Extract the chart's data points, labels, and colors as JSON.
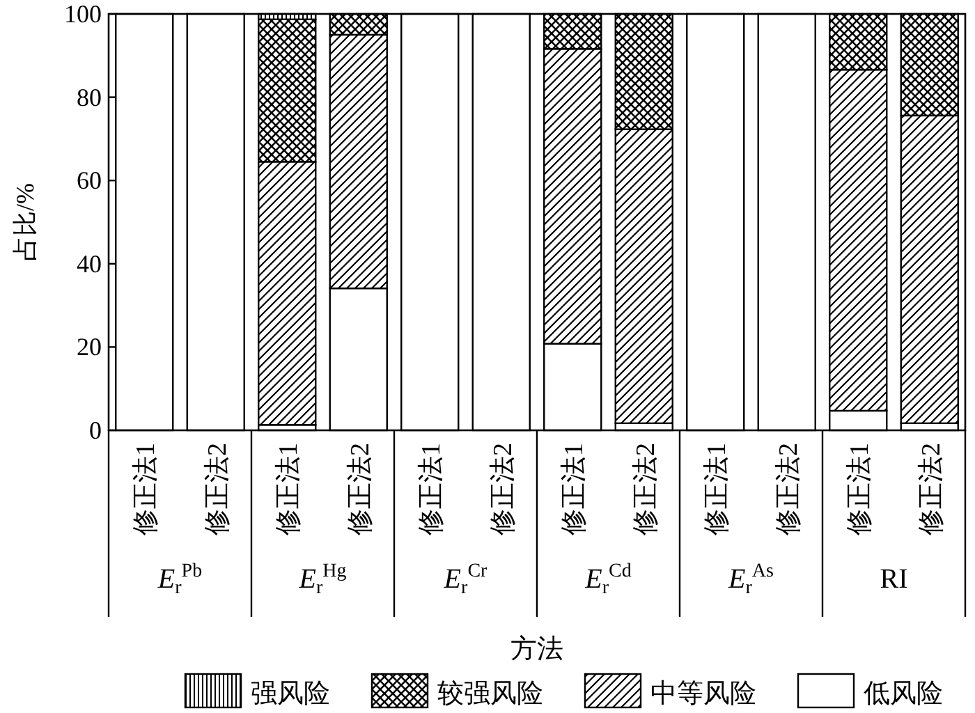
{
  "chart_data": {
    "type": "bar",
    "stacked": true,
    "xlabel": "方法",
    "ylabel": "占比/%",
    "categories": [
      "修正法1",
      "修正法2",
      "修正法1",
      "修正法2",
      "修正法1",
      "修正法2",
      "修正法1",
      "修正法2",
      "修正法1",
      "修正法2",
      "修正法1",
      "修正法2"
    ],
    "annotations": [
      "*E*$_{r}$$^{Pb}$",
      "*E*$_{r}$$^{Hg}$",
      "*E*$_{r}$$^{Cr}$",
      "*E*$_{r}$$^{Cd}$",
      "*E*$_{r}$$^{As}$",
      "RI"
    ],
    "series": [
      {
        "name": "低风险",
        "color": "#ffffff",
        "values": [
          100,
          100,
          1.3,
          34.1,
          100,
          100,
          20.8,
          1.7,
          100,
          100,
          4.7,
          1.7
        ]
      },
      {
        "name": "中等风险",
        "color": "#000000",
        "values": [
          0,
          0,
          63.2,
          60.9,
          0,
          0,
          70.8,
          70.6,
          0,
          0,
          81.9,
          73.9
        ]
      },
      {
        "name": "较强风险",
        "color": "#000000",
        "values": [
          0,
          0,
          34.2,
          5.0,
          0,
          0,
          8.4,
          27.7,
          0,
          0,
          13.4,
          24.4
        ]
      },
      {
        "name": "强风险",
        "color": "#000000",
        "values": [
          0,
          0,
          1.3,
          0,
          0,
          0,
          0,
          0,
          0,
          0,
          0,
          0
        ]
      }
    ],
    "ylim": [
      0,
      100
    ],
    "yticks": [
      0,
      20,
      40,
      60,
      80,
      100
    ],
    "legend": "bottom"
  }
}
